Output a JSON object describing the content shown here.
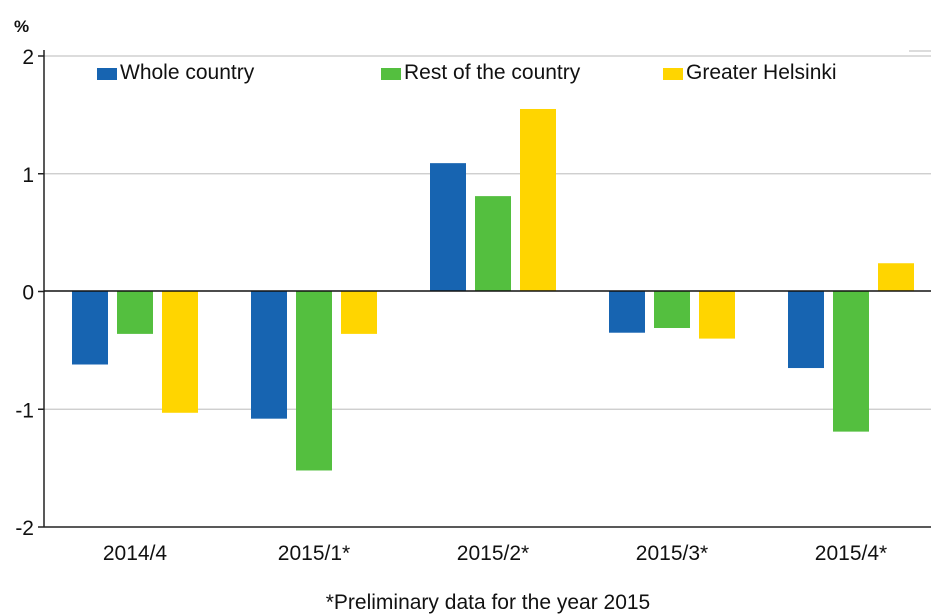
{
  "chart_data": {
    "type": "bar",
    "unit_label": "%",
    "categories": [
      "2014/4",
      "2015/1*",
      "2015/2*",
      "2015/3*",
      "2015/4*"
    ],
    "series": [
      {
        "name": "Whole country",
        "color": "#1764b1",
        "values": [
          -0.62,
          -1.08,
          1.09,
          -0.35,
          -0.65
        ]
      },
      {
        "name": "Rest of the country",
        "color": "#54bf3f",
        "values": [
          -0.36,
          -1.52,
          0.81,
          -0.31,
          -1.19
        ]
      },
      {
        "name": "Greater Helsinki",
        "color": "#ffd500",
        "values": [
          -1.03,
          -0.36,
          1.55,
          -0.4,
          0.24
        ]
      }
    ],
    "ylim": [
      -2,
      2
    ],
    "yticks": [
      "-2",
      "-1",
      "0",
      "1",
      "2"
    ],
    "grid": true,
    "legend": "top",
    "note": "*Preliminary data for the year 2015"
  }
}
